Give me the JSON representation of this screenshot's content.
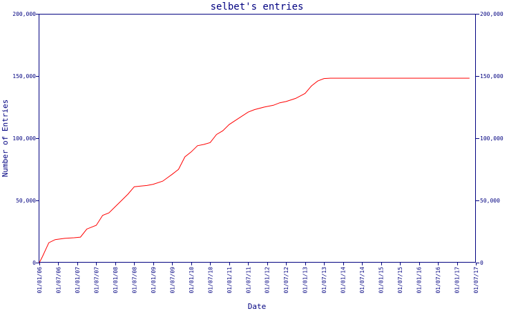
{
  "chart_data": {
    "type": "line",
    "title": "selbet's entries",
    "xlabel": "Date",
    "ylabel": "Number of Entries",
    "ylim": [
      0,
      200000
    ],
    "y_ticks": [
      0,
      50000,
      100000,
      150000,
      200000
    ],
    "y_tick_labels": [
      "0",
      "50,000",
      "100,000",
      "150,000",
      "200,000"
    ],
    "x_tick_labels": [
      "01/01/06",
      "01/07/06",
      "01/01/07",
      "01/07/07",
      "01/01/08",
      "01/07/08",
      "01/01/09",
      "01/07/09",
      "01/01/10",
      "01/07/10",
      "01/01/11",
      "01/07/11",
      "01/01/12",
      "01/07/12",
      "01/01/13",
      "01/07/13",
      "01/01/14",
      "01/07/14",
      "01/01/15",
      "01/07/15",
      "01/01/16",
      "01/07/16",
      "01/01/17",
      "01/07/17"
    ],
    "grid": false,
    "colors": {
      "axis": "#000080",
      "line": "#ff0000"
    },
    "series": [
      {
        "points": [
          [
            "01/01/06",
            0
          ],
          [
            "01/02/06",
            5000
          ],
          [
            "01/04/06",
            16000
          ],
          [
            "01/06/06",
            18500
          ],
          [
            "01/09/06",
            19500
          ],
          [
            "01/12/06",
            20000
          ],
          [
            "01/02/07",
            20500
          ],
          [
            "01/04/07",
            27000
          ],
          [
            "01/07/07",
            30000
          ],
          [
            "01/09/07",
            38000
          ],
          [
            "01/11/07",
            40000
          ],
          [
            "01/01/08",
            45000
          ],
          [
            "01/03/08",
            50000
          ],
          [
            "01/05/08",
            55000
          ],
          [
            "01/07/08",
            61000
          ],
          [
            "01/09/08",
            61500
          ],
          [
            "01/11/08",
            62000
          ],
          [
            "01/01/09",
            63000
          ],
          [
            "01/04/09",
            65500
          ],
          [
            "01/07/09",
            71000
          ],
          [
            "01/09/09",
            75000
          ],
          [
            "01/11/09",
            85000
          ],
          [
            "01/01/10",
            89000
          ],
          [
            "01/03/10",
            94000
          ],
          [
            "01/05/10",
            95000
          ],
          [
            "01/07/10",
            96500
          ],
          [
            "01/09/10",
            103000
          ],
          [
            "01/11/10",
            106000
          ],
          [
            "01/01/11",
            111000
          ],
          [
            "01/04/11",
            116000
          ],
          [
            "01/07/11",
            121000
          ],
          [
            "01/09/11",
            123000
          ],
          [
            "01/12/11",
            125000
          ],
          [
            "01/03/12",
            126500
          ],
          [
            "01/05/12",
            128500
          ],
          [
            "01/07/12",
            129500
          ],
          [
            "01/10/12",
            132000
          ],
          [
            "01/01/13",
            136000
          ],
          [
            "01/03/13",
            142000
          ],
          [
            "01/05/13",
            146000
          ],
          [
            "01/07/13",
            148000
          ],
          [
            "01/09/13",
            148300
          ],
          [
            "01/07/14",
            148300
          ],
          [
            "01/07/15",
            148300
          ],
          [
            "01/07/16",
            148300
          ],
          [
            "01/05/17",
            148300
          ]
        ]
      }
    ]
  }
}
